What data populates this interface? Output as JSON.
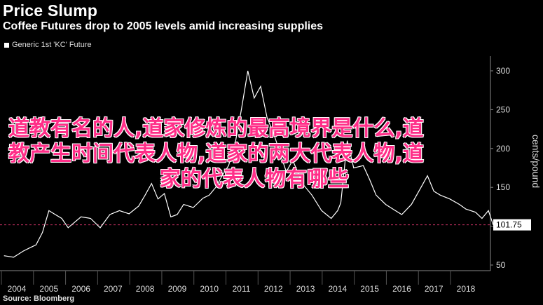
{
  "title": "Price Slump",
  "subtitle": "Coffee Futures drop to 2005 levels amid increasing supplies",
  "legend_label": "Generic 1st 'KC' Future",
  "source": "Source: Bloomberg",
  "overlay_text": [
    "道教有名的人,道家修炼的最高境界是什么,道",
    "教产生时间代表人物,道家的两大代表人物,道",
    "家的代表人物有哪些"
  ],
  "colors": {
    "background": "#000000",
    "line": "#ffffff",
    "reference_line": "#cc3366",
    "overlay": "#ff2e88"
  },
  "chart_data": {
    "type": "line",
    "title": "Price Slump",
    "subtitle": "Coffee Futures drop to 2005 levels amid increasing supplies",
    "ylabel": "cents/pound",
    "ylim": [
      40,
      315
    ],
    "yticks": [
      50,
      100,
      150,
      200,
      250,
      300
    ],
    "xlim": [
      2003.6,
      2018.95
    ],
    "xticks": [
      2004,
      2005,
      2006,
      2007,
      2008,
      2009,
      2010,
      2011,
      2012,
      2013,
      2014,
      2015,
      2016,
      2017,
      2018
    ],
    "last_value_label": "101.75",
    "reference_value": 101.75,
    "grid": false,
    "legend_position": "top-left",
    "series": [
      {
        "name": "Generic 1st 'KC' Future",
        "x": [
          2003.6,
          2003.9,
          2004.2,
          2004.4,
          2004.6,
          2004.8,
          2005.0,
          2005.2,
          2005.4,
          2005.6,
          2005.8,
          2006.0,
          2006.3,
          2006.6,
          2006.9,
          2007.2,
          2007.5,
          2007.8,
          2008.0,
          2008.2,
          2008.4,
          2008.6,
          2008.8,
          2009.0,
          2009.2,
          2009.5,
          2009.8,
          2010.0,
          2010.2,
          2010.4,
          2010.6,
          2010.8,
          2011.0,
          2011.2,
          2011.4,
          2011.6,
          2011.8,
          2012.0,
          2012.2,
          2012.4,
          2012.6,
          2012.9,
          2013.2,
          2013.5,
          2013.8,
          2014.0,
          2014.1,
          2014.3,
          2014.5,
          2014.8,
          2015.0,
          2015.2,
          2015.5,
          2015.8,
          2016.0,
          2016.3,
          2016.6,
          2016.8,
          2017.0,
          2017.2,
          2017.5,
          2017.8,
          2018.0,
          2018.3,
          2018.5,
          2018.7,
          2018.85
        ],
        "y": [
          62,
          60,
          68,
          72,
          76,
          92,
          120,
          115,
          110,
          98,
          105,
          112,
          110,
          98,
          115,
          120,
          116,
          126,
          140,
          155,
          135,
          142,
          112,
          115,
          128,
          124,
          136,
          140,
          150,
          165,
          178,
          205,
          250,
          300,
          265,
          280,
          240,
          220,
          195,
          170,
          185,
          155,
          140,
          120,
          110,
          120,
          130,
          210,
          175,
          178,
          160,
          140,
          128,
          120,
          115,
          128,
          150,
          165,
          145,
          140,
          135,
          128,
          122,
          118,
          110,
          120,
          101.75
        ]
      }
    ]
  }
}
